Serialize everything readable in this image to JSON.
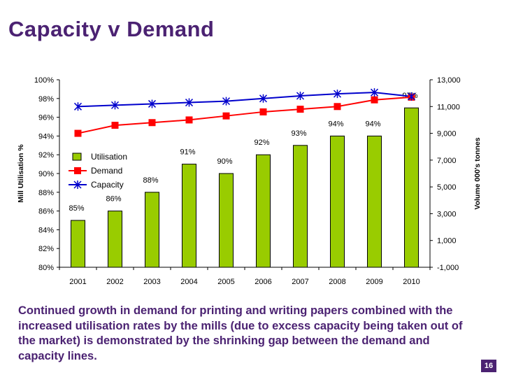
{
  "slide": {
    "title": "Capacity v Demand",
    "caption": "Continued growth in demand for printing and writing papers combined with the increased utilisation rates by the mills (due to excess capacity being taken out of the market) is demonstrated by the shrinking gap between the demand and capacity lines.",
    "page_number": "16"
  },
  "colors": {
    "title": "#4b2272",
    "bars": "#99cc00",
    "demand": "#ff0000",
    "capacity": "#0000cc"
  },
  "chart_data": {
    "type": "bar",
    "categories": [
      "2001",
      "2002",
      "2003",
      "2004",
      "2005",
      "2006",
      "2007",
      "2008",
      "2009",
      "2010"
    ],
    "series": [
      {
        "name": "Utilisation",
        "type": "bar",
        "axis": "left",
        "values": [
          85,
          86,
          88,
          91,
          90,
          92,
          93,
          94,
          94,
          97
        ],
        "data_labels": [
          "85%",
          "86%",
          "88%",
          "91%",
          "90%",
          "92%",
          "93%",
          "94%",
          "94%",
          "97%"
        ]
      },
      {
        "name": "Demand",
        "type": "line",
        "marker": "square",
        "axis": "right",
        "values": [
          9000,
          9600,
          9800,
          10000,
          10300,
          10600,
          10800,
          11000,
          11500,
          11700
        ]
      },
      {
        "name": "Capacity",
        "type": "line",
        "marker": "asterisk",
        "axis": "right",
        "values": [
          11000,
          11100,
          11200,
          11300,
          11400,
          11600,
          11800,
          11950,
          12050,
          11750
        ]
      }
    ],
    "y_left": {
      "label": "Mill Utilisation %",
      "ylim": [
        80,
        100
      ],
      "ticks": [
        "80%",
        "82%",
        "84%",
        "86%",
        "88%",
        "90%",
        "92%",
        "94%",
        "96%",
        "98%",
        "100%"
      ]
    },
    "y_right": {
      "label": "Volume 000's tonnes",
      "ylim": [
        -1000,
        13000
      ],
      "ticks": [
        "-1,000",
        "1,000",
        "3,000",
        "5,000",
        "7,000",
        "9,000",
        "11,000",
        "13,000"
      ]
    },
    "legend": {
      "placement": "left-inside",
      "entries": [
        "Utilisation",
        "Demand",
        "Capacity"
      ]
    },
    "grid": false
  }
}
